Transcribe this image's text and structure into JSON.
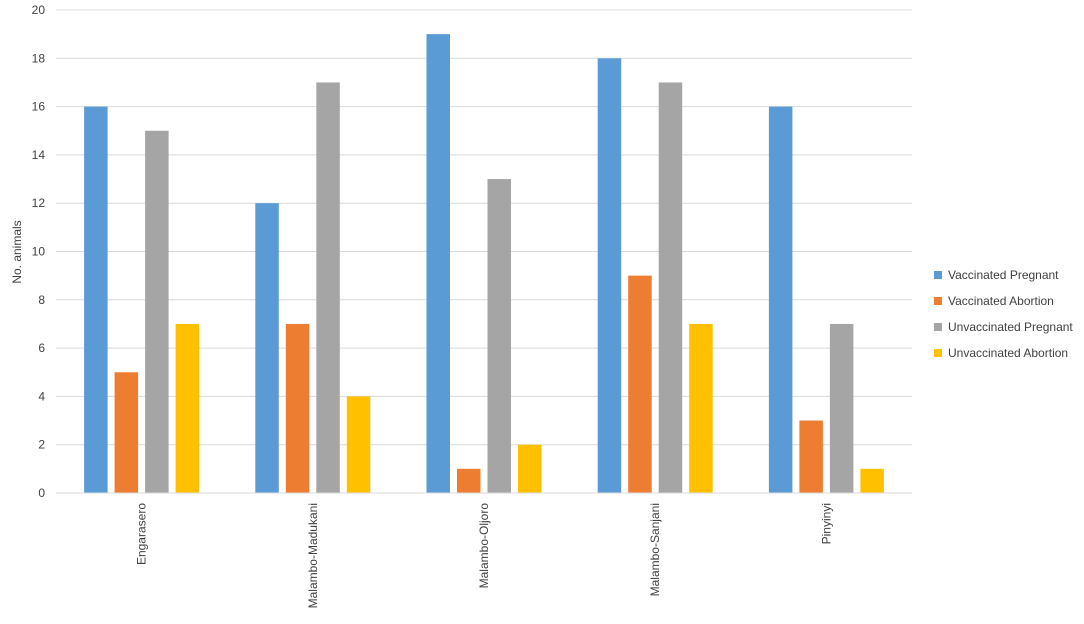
{
  "chart_data": {
    "type": "bar",
    "title": "",
    "xlabel": "",
    "ylabel": "No. animals",
    "ylim": [
      0,
      20
    ],
    "yticks": [
      0,
      2,
      4,
      6,
      8,
      10,
      12,
      14,
      16,
      18,
      20
    ],
    "grid": true,
    "legend_position": "right",
    "categories": [
      "Engarasero",
      "Malambo-Madukani",
      "Malambo-Oljoro",
      "Malambo-Sanjani",
      "Pinyinyi"
    ],
    "series": [
      {
        "name": "Vaccinated Pregnant",
        "color": "#5B9BD5",
        "values": [
          16,
          12,
          19,
          18,
          16
        ]
      },
      {
        "name": "Vaccinated Abortion",
        "color": "#ED7D31",
        "values": [
          5,
          7,
          1,
          9,
          3
        ]
      },
      {
        "name": "Unvaccinated Pregnant",
        "color": "#A5A5A5",
        "values": [
          15,
          17,
          13,
          17,
          7
        ]
      },
      {
        "name": "Unvaccinated Abortion",
        "color": "#FFC000",
        "values": [
          7,
          4,
          2,
          7,
          1
        ]
      }
    ]
  }
}
